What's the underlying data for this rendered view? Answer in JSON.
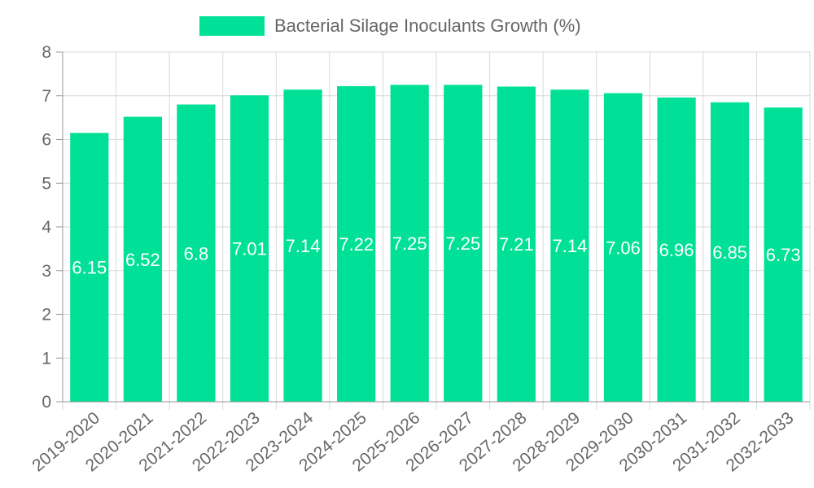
{
  "chart_data": {
    "type": "bar",
    "categories": [
      "2019-2020",
      "2020-2021",
      "2021-2022",
      "2022-2023",
      "2023-2024",
      "2024-2025",
      "2025-2026",
      "2026-2027",
      "2027-2028",
      "2028-2029",
      "2029-2030",
      "2030-2031",
      "2031-2032",
      "2032-2033"
    ],
    "series": [
      {
        "name": "Bacterial Silage Inoculants Growth (%)",
        "values": [
          6.15,
          6.52,
          6.8,
          7.01,
          7.14,
          7.22,
          7.25,
          7.25,
          7.21,
          7.14,
          7.06,
          6.96,
          6.85,
          6.73
        ]
      }
    ],
    "data_labels": [
      "6.15",
      "6.52",
      "6.8",
      "7.01",
      "7.14",
      "7.22",
      "7.25",
      "7.25",
      "7.21",
      "7.14",
      "7.06",
      "6.96",
      "6.85",
      "6.73"
    ],
    "y_ticks": [
      "0",
      "1",
      "2",
      "3",
      "4",
      "5",
      "6",
      "7",
      "8"
    ],
    "ylim": [
      0,
      8
    ],
    "grid": true,
    "legend_position": "top-center",
    "colors": {
      "bar": "#00e096",
      "grid": "#d9d9d9",
      "text": "#666666",
      "data_label": "#ffffff"
    }
  }
}
